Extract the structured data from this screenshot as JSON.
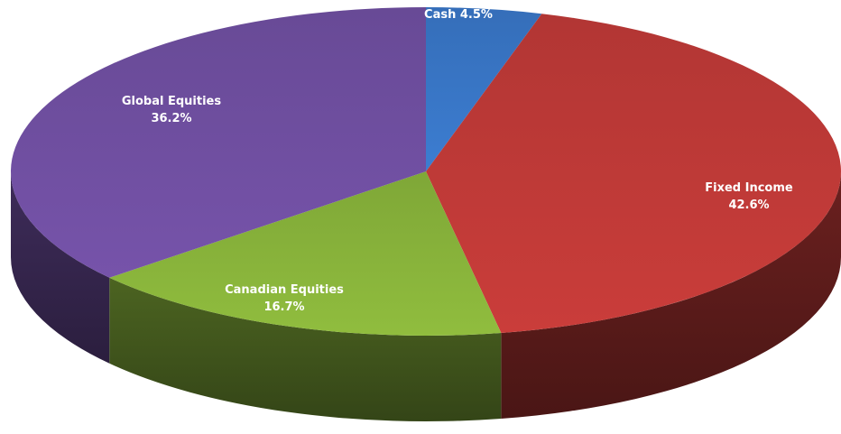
{
  "chart_data": {
    "type": "pie",
    "style": "3d-tilted",
    "title": "",
    "start_angle_deg": 0,
    "direction": "clockwise",
    "slices": [
      {
        "category": "Cash",
        "value": 4.5,
        "label_line1": "Cash 4.5%",
        "label_line2": "",
        "color": "#3a78c9",
        "label_color": "#ffffff"
      },
      {
        "category": "Fixed Income",
        "value": 42.6,
        "label_line1": "Fixed Income",
        "label_line2": "42.6%",
        "color": "#c23b38",
        "label_color": "#ffffff"
      },
      {
        "category": "Canadian Equities",
        "value": 16.7,
        "label_line1": "Canadian Equities",
        "label_line2": "16.7%",
        "color": "#8ab63c",
        "label_color": "#ffffff"
      },
      {
        "category": "Global Equities",
        "value": 36.2,
        "label_line1": "Global Equities",
        "label_line2": "36.2%",
        "color": "#7150a3",
        "label_color": "#ffffff"
      }
    ]
  }
}
